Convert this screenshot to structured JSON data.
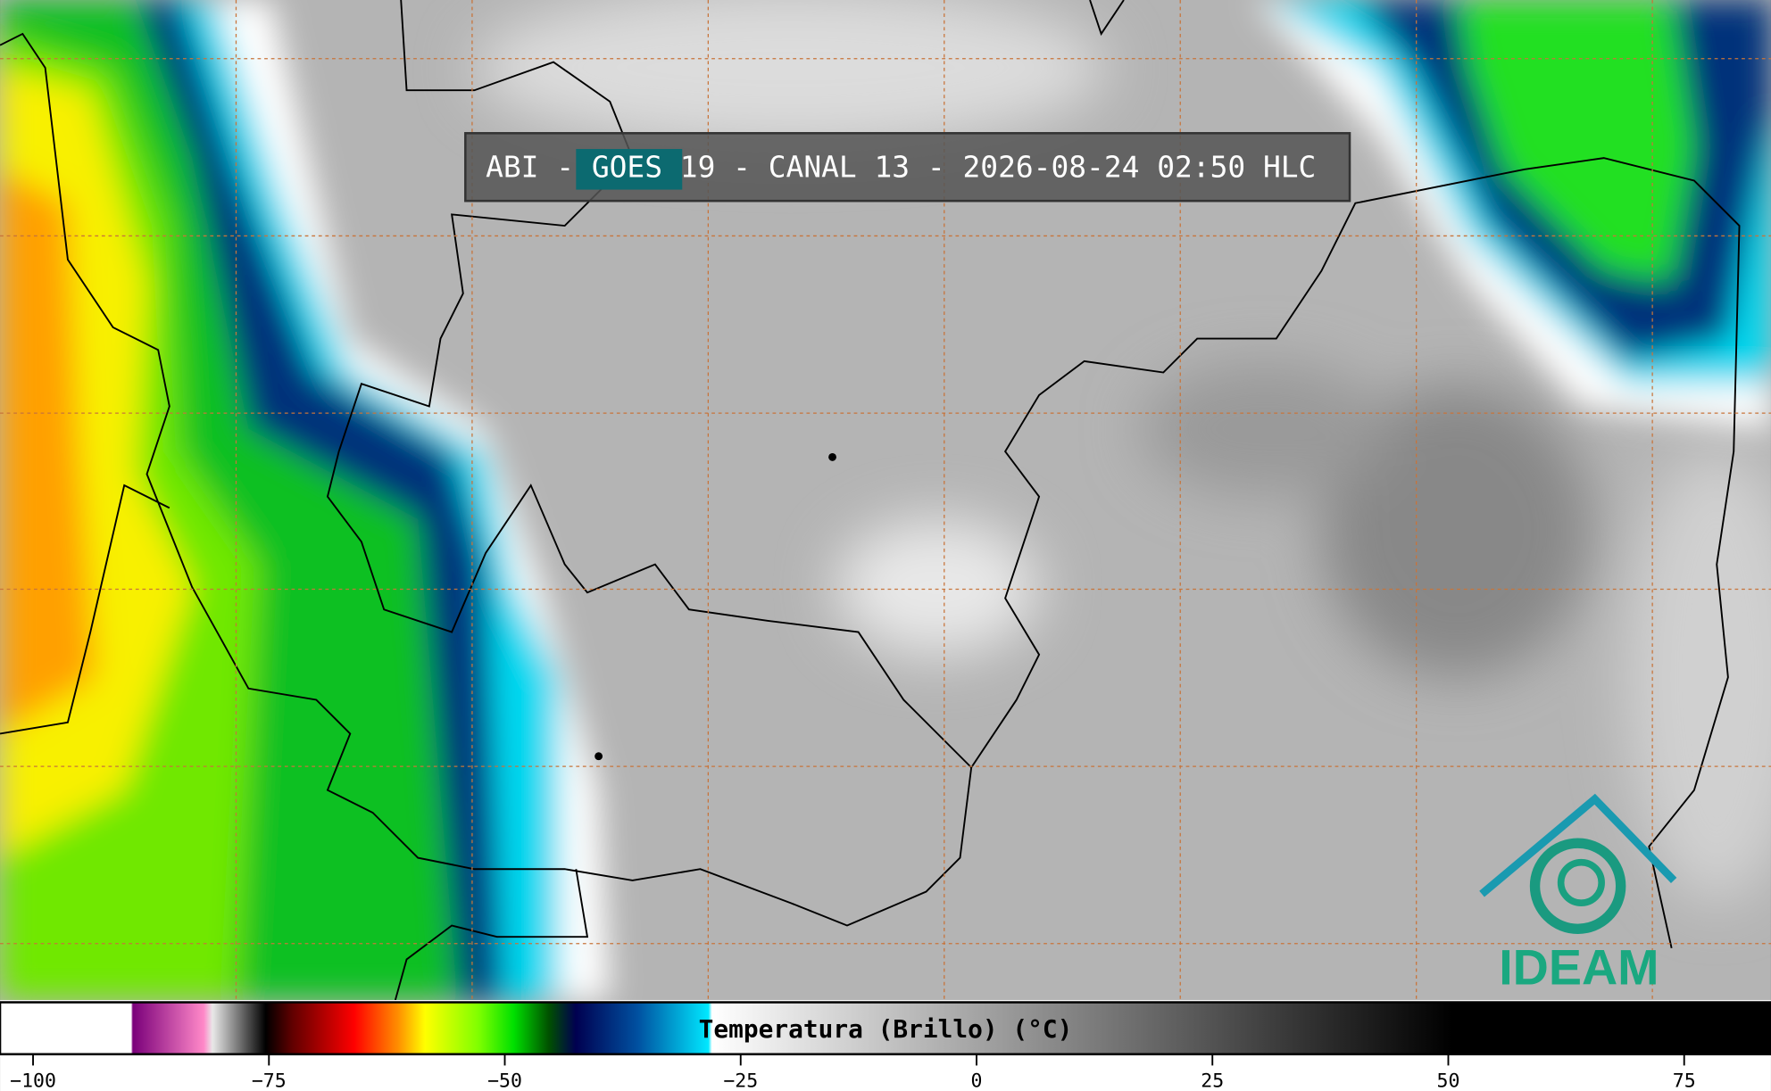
{
  "title": "ABI - GOES 19 - CANAL 13 - 2026-08-24 02:50 HLC",
  "colorbar": {
    "label": "Temperatura (Brillo) (°C)",
    "lim": [
      -103.5,
      84.2
    ],
    "ticks": [
      {
        "value": -100,
        "label": "−100"
      },
      {
        "value": -75,
        "label": "−75"
      },
      {
        "value": -50,
        "label": "−50"
      },
      {
        "value": -25,
        "label": "−25"
      },
      0,
      25,
      50,
      75
    ]
  },
  "logo": "IDEAM"
}
